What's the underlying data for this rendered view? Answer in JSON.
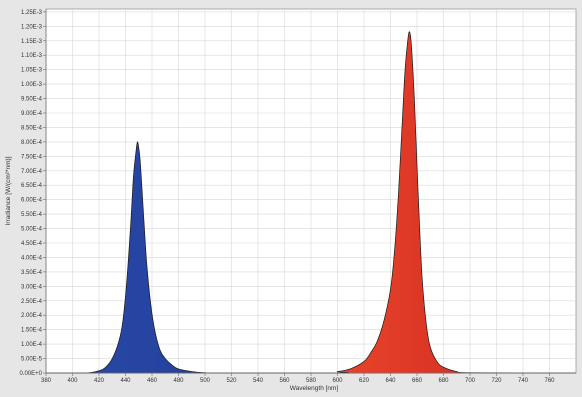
{
  "chart_data": {
    "type": "area",
    "xlabel": "Wavelength [nm]",
    "ylabel": "Irradiance [W/(cm²*nm)]",
    "xlim": [
      380,
      780
    ],
    "ylim": [
      0,
      0.00126
    ],
    "x_ticks": [
      380,
      400,
      420,
      440,
      460,
      480,
      500,
      520,
      540,
      560,
      580,
      600,
      620,
      640,
      660,
      680,
      700,
      720,
      740,
      760
    ],
    "x_tick_labels": [
      "380",
      "400",
      "420",
      "440",
      "460",
      "480",
      "500",
      "520",
      "540",
      "560",
      "580",
      "600",
      "620",
      "640",
      "660",
      "680",
      "700",
      "720",
      "740",
      "760"
    ],
    "y_ticks": [
      0,
      5e-05,
      0.0001,
      0.00015,
      0.0002,
      0.00025,
      0.0003,
      0.00035,
      0.0004,
      0.00045,
      0.0005,
      0.00055,
      0.0006,
      0.00065,
      0.0007,
      0.00075,
      0.0008,
      0.00085,
      0.0009,
      0.00095,
      0.001,
      0.00105,
      0.0011,
      0.00115,
      0.0012,
      0.00125
    ],
    "y_tick_labels": [
      "0.00E+0",
      "5.00E-5",
      "1.00E-4",
      "1.50E-4",
      "2.00E-4",
      "2.50E-4",
      "3.00E-4",
      "3.50E-4",
      "4.00E-4",
      "4.50E-4",
      "5.00E-4",
      "5.50E-4",
      "6.00E-4",
      "6.50E-4",
      "7.00E-4",
      "7.50E-4",
      "8.00E-4",
      "8.50E-4",
      "9.00E-4",
      "9.50E-4",
      "1.00E-3",
      "1.05E-3",
      "1.10E-3",
      "1.15E-3",
      "1.20E-3",
      "1.25E-3"
    ],
    "grid": true,
    "series": [
      {
        "color": "#1e3c96",
        "x": [
          380,
          410,
          420,
          425,
          430,
          435,
          438,
          441,
          444,
          446,
          448,
          449,
          450,
          451,
          452,
          454,
          456,
          459,
          462,
          466,
          470,
          475,
          480,
          490,
          500,
          520,
          780
        ],
        "y": [
          0,
          0,
          8e-06,
          2e-05,
          5e-05,
          0.00011,
          0.00018,
          0.00032,
          0.00052,
          0.00068,
          0.00077,
          0.0008,
          0.00078,
          0.00074,
          0.00067,
          0.00052,
          0.00038,
          0.00024,
          0.00015,
          8e-05,
          5e-05,
          2.8e-05,
          1.4e-05,
          5e-06,
          1e-06,
          0,
          0
        ]
      },
      {
        "color": "#e03322",
        "x": [
          380,
          590,
          600,
          610,
          620,
          625,
          630,
          635,
          640,
          643,
          646,
          649,
          651,
          653,
          654,
          655,
          656,
          658,
          660,
          662,
          664,
          667,
          670,
          675,
          680,
          690,
          700,
          780
        ],
        "y": [
          0,
          0,
          5e-06,
          1.5e-05,
          4e-05,
          7e-05,
          0.00011,
          0.00018,
          0.00029,
          0.00042,
          0.00062,
          0.00088,
          0.00105,
          0.00115,
          0.00118,
          0.00117,
          0.00112,
          0.00095,
          0.00072,
          0.0005,
          0.00032,
          0.00017,
          9e-05,
          4e-05,
          2e-05,
          5e-06,
          1e-06,
          0
        ]
      }
    ]
  }
}
